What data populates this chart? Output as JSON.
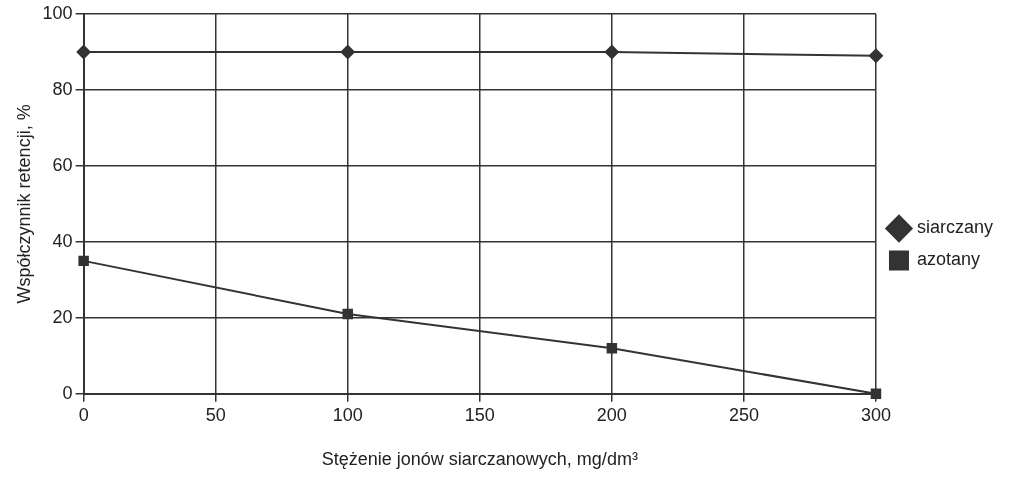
{
  "chart_data": {
    "type": "line",
    "xlabel": "Stężenie jonów siarczanowych, mg/dm³",
    "ylabel": "Współczynnik retencji, %",
    "x": [
      0,
      100,
      200,
      300
    ],
    "series": [
      {
        "name": "siarczany",
        "color": "#333333",
        "marker": "diamond",
        "values": [
          90,
          90,
          90,
          89
        ]
      },
      {
        "name": "azotany",
        "color": "#333333",
        "marker": "square",
        "values": [
          35,
          21,
          12,
          0
        ]
      }
    ],
    "xlim": [
      0,
      300
    ],
    "xticks": [
      0,
      50,
      100,
      150,
      200,
      250,
      300
    ],
    "ylim": [
      0,
      100
    ],
    "yticks": [
      0,
      20,
      40,
      60,
      80,
      100
    ],
    "grid": true,
    "legend": "right",
    "line_style": "solid"
  }
}
